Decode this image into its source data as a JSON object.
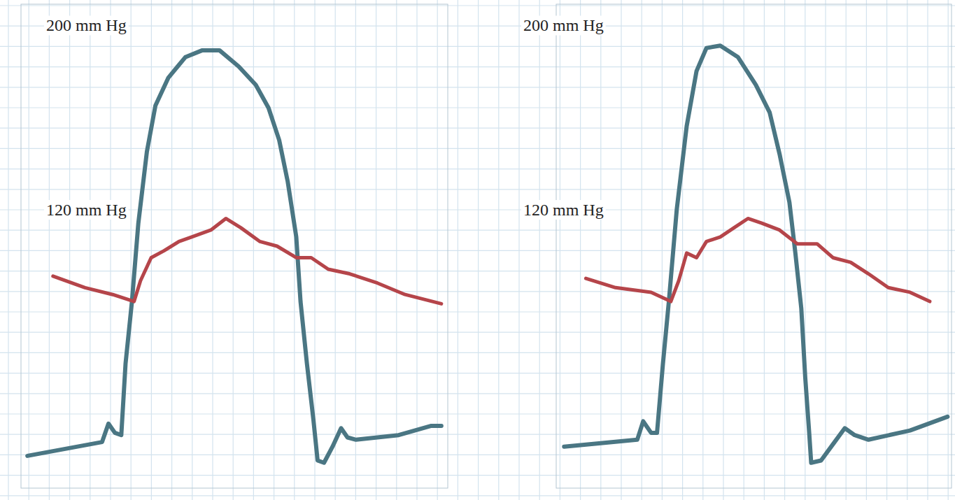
{
  "chart_data": [
    {
      "type": "line",
      "grid": true,
      "tick_labels": "y",
      "xlim": [
        0,
        20
      ],
      "ylim": [
        0,
        210
      ],
      "yticks": [
        {
          "value": 200,
          "label": "200 mm Hg"
        },
        {
          "value": 120,
          "label": "120 mm Hg"
        }
      ],
      "series": [
        {
          "color": "#4a7683",
          "x": [
            0.3,
            3.8,
            4.1,
            4.4,
            4.7,
            4.9,
            5.2,
            5.5,
            5.9,
            6.3,
            6.9,
            7.7,
            8.5,
            9.3,
            10.2,
            11.0,
            11.6,
            12.1,
            12.5,
            12.9,
            13.1,
            13.4,
            13.7,
            13.9,
            14.2,
            14.6,
            15.0,
            15.3,
            15.7,
            17.7,
            19.2,
            19.7
          ],
          "values": [
            14,
            20,
            28,
            24,
            23,
            54,
            81,
            115,
            146,
            166,
            178,
            187,
            190,
            190,
            183,
            175,
            165,
            151,
            133,
            109,
            81,
            54,
            30,
            12,
            11,
            18,
            26,
            22,
            21,
            23,
            27,
            27
          ]
        },
        {
          "color": "#b5454a",
          "x": [
            1.5,
            3.0,
            4.3,
            5.3,
            5.6,
            6.1,
            6.7,
            7.4,
            8.0,
            8.9,
            9.6,
            10.3,
            11.2,
            12.0,
            12.9,
            13.6,
            14.4,
            15.4,
            16.7,
            18.0,
            19.7
          ],
          "values": [
            92,
            87,
            84,
            81,
            90,
            100,
            103,
            107,
            109,
            112,
            117,
            113,
            107,
            105,
            100,
            100,
            95,
            93,
            89,
            84,
            80
          ]
        }
      ]
    },
    {
      "type": "line",
      "grid": true,
      "tick_labels": "y",
      "xlim": [
        0,
        20
      ],
      "ylim": [
        0,
        210
      ],
      "yticks": [
        {
          "value": 200,
          "label": "200 mm Hg"
        },
        {
          "value": 120,
          "label": "120 mm Hg"
        }
      ],
      "series": [
        {
          "color": "#4a7683",
          "x": [
            0.4,
            4.1,
            4.4,
            4.8,
            5.1,
            5.4,
            5.7,
            6.1,
            6.6,
            7.1,
            7.6,
            8.3,
            9.2,
            10.1,
            10.8,
            11.3,
            11.8,
            12.1,
            12.4,
            12.6,
            12.8,
            12.9,
            13.4,
            14.0,
            14.6,
            15.1,
            15.8,
            17.9,
            19.8
          ],
          "values": [
            18,
            21,
            29,
            24,
            24,
            54,
            81,
            121,
            157,
            181,
            191,
            192,
            187,
            175,
            163,
            145,
            124,
            102,
            78,
            48,
            24,
            11,
            12,
            19,
            26,
            23,
            21,
            25,
            31
          ]
        },
        {
          "color": "#b5454a",
          "x": [
            1.5,
            3.0,
            4.8,
            5.8,
            6.2,
            6.6,
            7.1,
            7.6,
            8.3,
            9.0,
            9.7,
            10.4,
            11.3,
            12.2,
            13.2,
            14.0,
            14.9,
            15.8,
            16.8,
            17.9,
            18.9
          ],
          "values": [
            91,
            87,
            85,
            81,
            90,
            102,
            100,
            107,
            109,
            113,
            117,
            115,
            112,
            106,
            106,
            100,
            98,
            93,
            87,
            85,
            81
          ]
        }
      ]
    }
  ]
}
